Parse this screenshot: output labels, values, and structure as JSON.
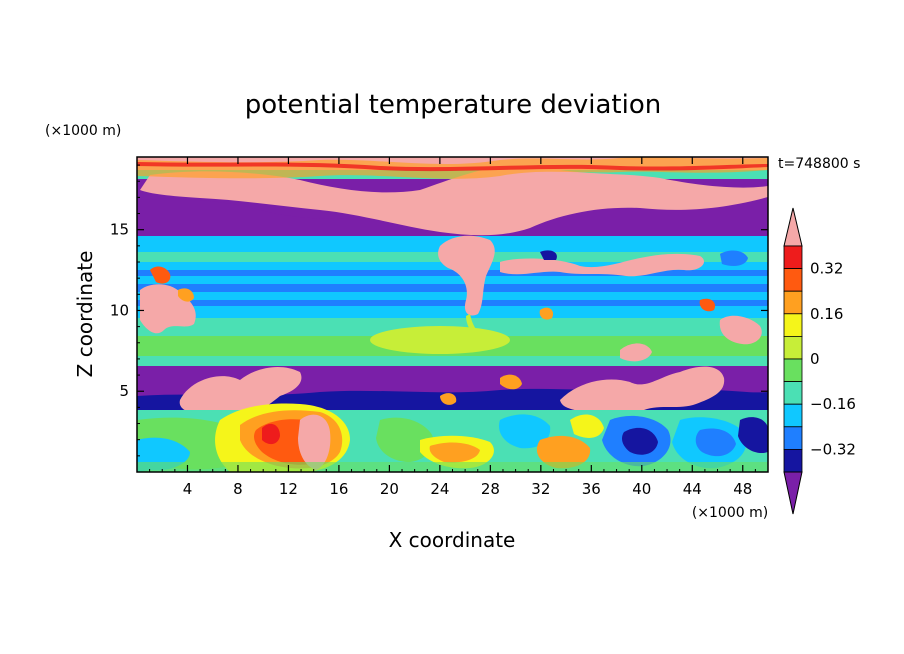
{
  "chart_data": {
    "type": "heatmap",
    "title": "potential temperature deviation",
    "xlabel": "X coordinate",
    "ylabel": "Z coordinate",
    "x_units": "(×1000 m)",
    "y_units": "(×1000 m)",
    "time_label": "t=748800 s",
    "xlim": [
      0,
      50
    ],
    "ylim": [
      0,
      19.5
    ],
    "x_ticks": [
      4,
      8,
      12,
      16,
      20,
      24,
      28,
      32,
      36,
      40,
      44,
      48
    ],
    "x_tick_labels": [
      "4",
      "8",
      "12",
      "16",
      "20",
      "24",
      "28",
      "32",
      "36",
      "40",
      "44",
      "48"
    ],
    "y_ticks": [
      5,
      10,
      15
    ],
    "y_tick_labels": [
      "5",
      "10",
      "15"
    ],
    "colorbar": {
      "levels": [
        -0.4,
        -0.32,
        -0.24,
        -0.16,
        -0.08,
        0,
        0.08,
        0.16,
        0.24,
        0.32,
        0.4
      ],
      "labeled_values": [
        0.32,
        0.16,
        0,
        -0.16,
        -0.32
      ],
      "labels": [
        "0.32",
        "0.16",
        "0",
        "−0.16",
        "−0.32"
      ],
      "colors": [
        "#7a1fa8",
        "#1515a0",
        "#1f7fff",
        "#10c8ff",
        "#4be0b4",
        "#69e05f",
        "#c7ee38",
        "#f5f51a",
        "#ffa020",
        "#ff5a10",
        "#ee1c1c",
        "#f5a8a8"
      ],
      "extends": "both"
    },
    "layers": [
      {
        "z_range": [
          18.5,
          19.5
        ],
        "value_class": "mixed warm / near zero"
      },
      {
        "z_range": [
          15.0,
          18.5
        ],
        "value_class": "strong negative (below -0.4) with warm plumes above 0.4"
      },
      {
        "z_range": [
          12.0,
          15.0
        ],
        "value_class": "-0.08 to -0.16 with warm patches"
      },
      {
        "z_range": [
          10.0,
          12.0
        ],
        "value_class": "-0.16 to -0.24 bands"
      },
      {
        "z_range": [
          6.5,
          10.0
        ],
        "value_class": "0 to 0.08"
      },
      {
        "z_range": [
          5.0,
          6.5
        ],
        "value_class": "strong negative (below -0.4) with warm plumes above 0.4"
      },
      {
        "z_range": [
          0.0,
          5.0
        ],
        "value_class": "turbulent mixed, warm core near x=10-16"
      }
    ]
  }
}
